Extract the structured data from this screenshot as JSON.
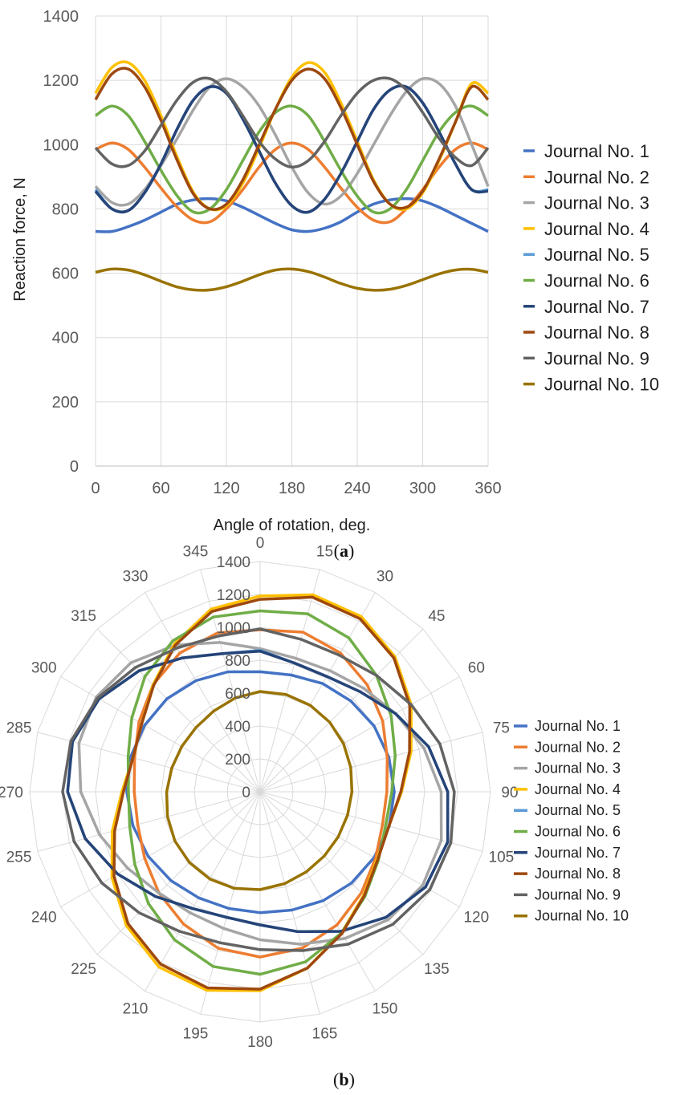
{
  "figure": {
    "panel_a_label": "a",
    "panel_b_label": "b"
  },
  "chart_data": [
    {
      "id": "a",
      "type": "line",
      "xlabel": "Angle of rotation, deg.",
      "ylabel": "Reaction force, N",
      "xlim": [
        0,
        360
      ],
      "ylim": [
        0,
        1400
      ],
      "xticks": [
        0,
        60,
        120,
        180,
        240,
        300,
        360
      ],
      "yticks": [
        0,
        200,
        400,
        600,
        800,
        1000,
        1200,
        1400
      ],
      "grid": true,
      "legend_position": "right",
      "x": [
        0,
        15,
        30,
        45,
        60,
        75,
        90,
        105,
        120,
        135,
        150,
        165,
        180,
        195,
        210,
        225,
        240,
        255,
        270,
        285,
        300,
        315,
        330,
        345,
        360
      ],
      "series": [
        {
          "name": "Journal No. 1",
          "color": "#4472C4",
          "values": [
            730,
            730,
            745,
            765,
            790,
            815,
            828,
            832,
            825,
            805,
            780,
            755,
            735,
            730,
            740,
            760,
            790,
            815,
            828,
            832,
            825,
            805,
            780,
            755,
            730
          ]
        },
        {
          "name": "Journal No. 2",
          "color": "#ED7D31",
          "values": [
            985,
            1005,
            985,
            930,
            865,
            805,
            765,
            760,
            800,
            860,
            930,
            985,
            1005,
            985,
            930,
            865,
            805,
            765,
            760,
            800,
            860,
            930,
            985,
            1005,
            985
          ]
        },
        {
          "name": "Journal No. 3",
          "color": "#A5A5A5",
          "values": [
            870,
            820,
            815,
            860,
            935,
            1020,
            1110,
            1180,
            1205,
            1180,
            1120,
            1030,
            930,
            850,
            815,
            840,
            910,
            1000,
            1090,
            1165,
            1205,
            1190,
            1120,
            1000,
            870
          ]
        },
        {
          "name": "Journal No. 4",
          "color": "#FFC000",
          "values": [
            1160,
            1240,
            1255,
            1200,
            1090,
            960,
            850,
            800,
            810,
            880,
            990,
            1110,
            1210,
            1255,
            1225,
            1130,
            1010,
            890,
            815,
            800,
            850,
            950,
            1070,
            1190,
            1160
          ]
        },
        {
          "name": "Journal No. 5",
          "color": "#5B9BD5",
          "values": [
            860,
            800,
            795,
            850,
            940,
            1050,
            1140,
            1180,
            1160,
            1080,
            980,
            880,
            810,
            790,
            830,
            910,
            1010,
            1110,
            1170,
            1180,
            1130,
            1040,
            940,
            860,
            860
          ]
        },
        {
          "name": "Journal No. 6",
          "color": "#70AD47",
          "values": [
            1090,
            1120,
            1090,
            1010,
            920,
            840,
            790,
            800,
            860,
            950,
            1040,
            1100,
            1120,
            1090,
            1010,
            920,
            840,
            790,
            800,
            860,
            950,
            1040,
            1100,
            1120,
            1090
          ]
        },
        {
          "name": "Journal No. 7",
          "color": "#264478",
          "values": [
            855,
            800,
            795,
            850,
            940,
            1050,
            1140,
            1180,
            1160,
            1080,
            980,
            880,
            810,
            790,
            830,
            910,
            1010,
            1110,
            1170,
            1180,
            1130,
            1040,
            940,
            860,
            855
          ]
        },
        {
          "name": "Journal No. 8",
          "color": "#9E480E",
          "values": [
            1140,
            1220,
            1235,
            1180,
            1075,
            950,
            845,
            800,
            815,
            890,
            1000,
            1110,
            1200,
            1235,
            1205,
            1115,
            1000,
            885,
            815,
            805,
            855,
            955,
            1070,
            1180,
            1140
          ]
        },
        {
          "name": "Journal No. 9",
          "color": "#636363",
          "values": [
            990,
            940,
            935,
            980,
            1060,
            1140,
            1195,
            1205,
            1165,
            1090,
            1010,
            955,
            930,
            950,
            1010,
            1090,
            1160,
            1200,
            1205,
            1170,
            1100,
            1020,
            960,
            935,
            990
          ]
        },
        {
          "name": "Journal No. 10",
          "color": "#997300",
          "values": [
            603,
            613,
            610,
            595,
            575,
            557,
            548,
            548,
            558,
            575,
            595,
            610,
            613,
            605,
            588,
            568,
            553,
            547,
            550,
            562,
            580,
            598,
            610,
            612,
            603
          ]
        }
      ]
    },
    {
      "id": "b",
      "type": "radar",
      "angles": [
        0,
        15,
        30,
        45,
        60,
        75,
        90,
        105,
        120,
        135,
        150,
        165,
        180,
        195,
        210,
        225,
        240,
        255,
        270,
        285,
        300,
        315,
        330,
        345
      ],
      "angle_labels": [
        "0",
        "15",
        "30",
        "45",
        "60",
        "75",
        "90",
        "105",
        "120",
        "135",
        "150",
        "165",
        "180",
        "195",
        "210",
        "225",
        "240",
        "255",
        "270",
        "285",
        "300",
        "315",
        "330",
        "345"
      ],
      "radial_ticks": [
        0,
        200,
        400,
        600,
        800,
        1000,
        1200,
        1400
      ],
      "rlim": [
        0,
        1400
      ],
      "legend_position": "right",
      "series": [
        {
          "name": "Journal No. 1",
          "color": "#4472C4",
          "values": [
            730,
            735,
            760,
            780,
            800,
            810,
            815,
            812,
            800,
            785,
            765,
            745,
            735,
            735,
            745,
            765,
            785,
            800,
            810,
            815,
            810,
            800,
            780,
            755
          ]
        },
        {
          "name": "Journal No. 2",
          "color": "#ED7D31",
          "values": [
            985,
            1005,
            975,
            920,
            860,
            800,
            770,
            770,
            810,
            870,
            935,
            985,
            1005,
            985,
            930,
            870,
            810,
            770,
            765,
            790,
            850,
            920,
            975,
            1000
          ]
        },
        {
          "name": "Journal No. 3",
          "color": "#A5A5A5",
          "values": [
            870,
            840,
            850,
            890,
            950,
            1030,
            1100,
            1140,
            1140,
            1100,
            1030,
            960,
            900,
            860,
            850,
            870,
            930,
            1010,
            1090,
            1140,
            1150,
            1110,
            1030,
            940
          ]
        },
        {
          "name": "Journal No. 4",
          "color": "#FFC000",
          "values": [
            1190,
            1240,
            1230,
            1160,
            1060,
            950,
            860,
            810,
            820,
            890,
            990,
            1110,
            1210,
            1250,
            1230,
            1150,
            1040,
            930,
            840,
            800,
            830,
            920,
            1040,
            1150
          ]
        },
        {
          "name": "Journal No. 5",
          "color": "#5B9BD5",
          "values": [
            860,
            810,
            810,
            860,
            950,
            1060,
            1140,
            1180,
            1160,
            1080,
            980,
            880,
            810,
            790,
            820,
            900,
            1000,
            1100,
            1170,
            1180,
            1130,
            1040,
            940,
            870
          ]
        },
        {
          "name": "Journal No. 6",
          "color": "#70AD47",
          "values": [
            1100,
            1120,
            1080,
            1000,
            920,
            850,
            800,
            790,
            830,
            900,
            990,
            1070,
            1110,
            1100,
            1040,
            960,
            880,
            820,
            800,
            830,
            900,
            990,
            1060,
            1100
          ]
        },
        {
          "name": "Journal No. 7",
          "color": "#264478",
          "values": [
            855,
            810,
            810,
            860,
            950,
            1060,
            1140,
            1180,
            1160,
            1080,
            980,
            880,
            810,
            790,
            820,
            900,
            1000,
            1100,
            1170,
            1180,
            1130,
            1040,
            940,
            870
          ]
        },
        {
          "name": "Journal No. 8",
          "color": "#9E480E",
          "values": [
            1170,
            1225,
            1215,
            1150,
            1050,
            940,
            855,
            810,
            825,
            895,
            995,
            1110,
            1200,
            1235,
            1210,
            1135,
            1025,
            915,
            830,
            800,
            830,
            915,
            1030,
            1135
          ]
        },
        {
          "name": "Journal No. 9",
          "color": "#636363",
          "values": [
            990,
            960,
            960,
            1000,
            1060,
            1130,
            1180,
            1200,
            1190,
            1140,
            1070,
            1000,
            960,
            950,
            980,
            1040,
            1110,
            1170,
            1200,
            1190,
            1140,
            1070,
            1010,
            980
          ]
        },
        {
          "name": "Journal No. 10",
          "color": "#997300",
          "values": [
            610,
            612,
            608,
            598,
            585,
            570,
            558,
            550,
            548,
            552,
            562,
            578,
            595,
            608,
            612,
            608,
            598,
            583,
            568,
            556,
            550,
            552,
            566,
            590
          ]
        }
      ]
    }
  ]
}
